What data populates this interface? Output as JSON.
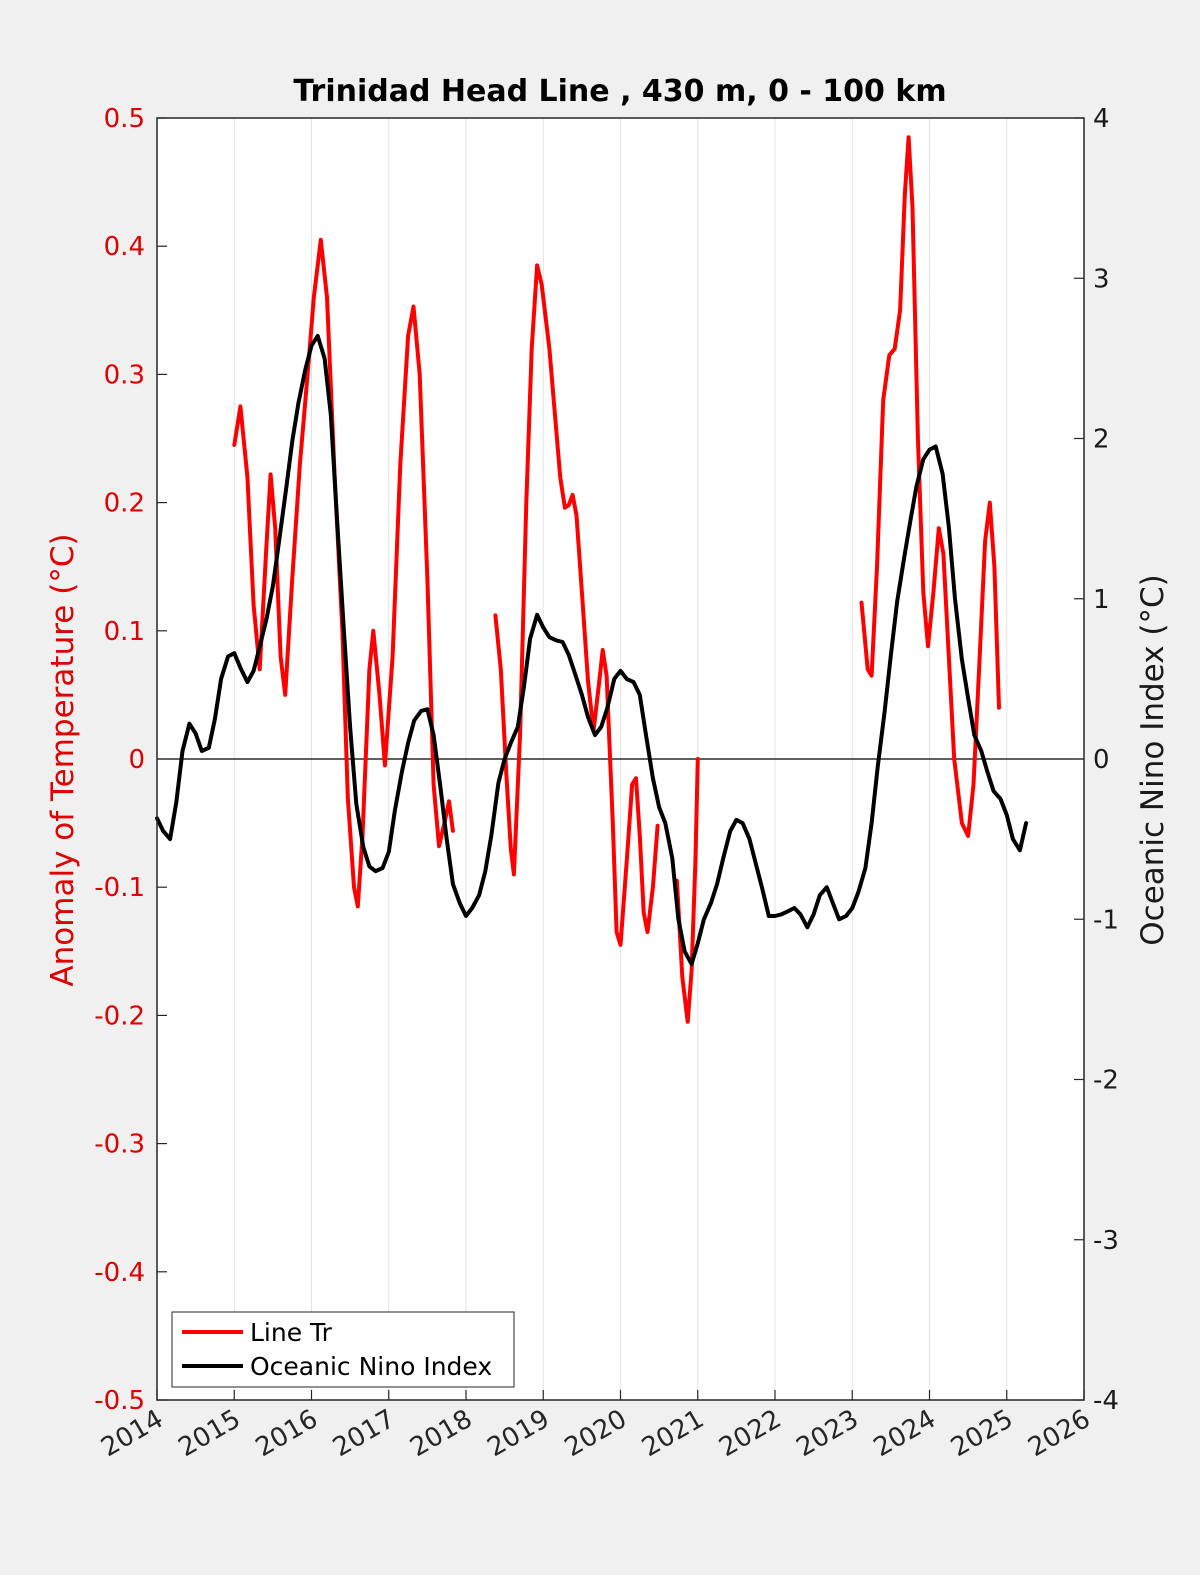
{
  "chart_data": {
    "type": "line",
    "title": "Trinidad Head Line , 430 m, 0 - 100 km",
    "xlabel": "",
    "ylabel_left": "Anomaly of Temperature (°C)",
    "ylabel_right": "Oceanic Nino Index (°C)",
    "xlim": [
      2014,
      2026
    ],
    "ylim_left": [
      -0.5,
      0.5
    ],
    "ylim_right": [
      -4,
      4
    ],
    "x_ticks": [
      "2014",
      "2015",
      "2016",
      "2017",
      "2018",
      "2019",
      "2020",
      "2021",
      "2022",
      "2023",
      "2024",
      "2025",
      "2026"
    ],
    "y_ticks_left": [
      "-0.5",
      "-0.4",
      "-0.3",
      "-0.2",
      "-0.1",
      "0",
      "0.1",
      "0.2",
      "0.3",
      "0.4",
      "0.5"
    ],
    "y_ticks_right": [
      "-4",
      "-3",
      "-2",
      "-1",
      "0",
      "1",
      "2",
      "3",
      "4"
    ],
    "grid": "vertical",
    "zero_line": true,
    "legend_position": "bottom-left",
    "colors": {
      "line_tr": "#ff0000",
      "oni": "#000000",
      "left_axis": "#e00000"
    },
    "series": [
      {
        "name": "Line Tr",
        "axis": "left",
        "segments": [
          [
            [
              2015.0,
              0.245
            ],
            [
              2015.08,
              0.275
            ],
            [
              2015.17,
              0.22
            ],
            [
              2015.25,
              0.12
            ],
            [
              2015.33,
              0.07
            ],
            [
              2015.42,
              0.17
            ],
            [
              2015.47,
              0.222
            ],
            [
              2015.53,
              0.18
            ],
            [
              2015.6,
              0.08
            ],
            [
              2015.66,
              0.05
            ],
            [
              2015.75,
              0.14
            ],
            [
              2015.85,
              0.23
            ],
            [
              2015.95,
              0.3
            ],
            [
              2016.03,
              0.36
            ],
            [
              2016.12,
              0.405
            ],
            [
              2016.2,
              0.36
            ],
            [
              2016.3,
              0.22
            ],
            [
              2016.4,
              0.1
            ],
            [
              2016.47,
              -0.03
            ],
            [
              2016.55,
              -0.1
            ],
            [
              2016.6,
              -0.115
            ],
            [
              2016.66,
              -0.06
            ],
            [
              2016.75,
              0.07
            ],
            [
              2016.8,
              0.1
            ],
            [
              2016.88,
              0.05
            ],
            [
              2016.95,
              -0.005
            ],
            [
              2017.05,
              0.08
            ],
            [
              2017.15,
              0.23
            ],
            [
              2017.25,
              0.33
            ],
            [
              2017.32,
              0.353
            ],
            [
              2017.4,
              0.3
            ],
            [
              2017.5,
              0.14
            ],
            [
              2017.58,
              -0.02
            ],
            [
              2017.65,
              -0.068
            ],
            [
              2017.72,
              -0.05
            ],
            [
              2017.78,
              -0.033
            ],
            [
              2017.83,
              -0.056
            ]
          ],
          [
            [
              2018.38,
              0.112
            ],
            [
              2018.45,
              0.07
            ],
            [
              2018.52,
              -0.01
            ],
            [
              2018.58,
              -0.07
            ],
            [
              2018.62,
              -0.09
            ],
            [
              2018.7,
              0.02
            ],
            [
              2018.78,
              0.2
            ],
            [
              2018.85,
              0.32
            ],
            [
              2018.92,
              0.385
            ],
            [
              2018.98,
              0.37
            ],
            [
              2019.08,
              0.32
            ],
            [
              2019.15,
              0.27
            ],
            [
              2019.22,
              0.22
            ],
            [
              2019.28,
              0.196
            ],
            [
              2019.33,
              0.198
            ],
            [
              2019.38,
              0.206
            ],
            [
              2019.43,
              0.19
            ],
            [
              2019.5,
              0.13
            ],
            [
              2019.58,
              0.06
            ],
            [
              2019.65,
              0.022
            ],
            [
              2019.72,
              0.058
            ],
            [
              2019.77,
              0.085
            ],
            [
              2019.82,
              0.065
            ],
            [
              2019.9,
              -0.05
            ],
            [
              2019.95,
              -0.135
            ],
            [
              2020.0,
              -0.145
            ],
            [
              2020.08,
              -0.08
            ],
            [
              2020.15,
              -0.02
            ],
            [
              2020.2,
              -0.015
            ],
            [
              2020.25,
              -0.06
            ],
            [
              2020.3,
              -0.12
            ],
            [
              2020.35,
              -0.135
            ],
            [
              2020.42,
              -0.1
            ],
            [
              2020.48,
              -0.052
            ]
          ],
          [
            [
              2020.73,
              -0.095
            ],
            [
              2020.8,
              -0.17
            ],
            [
              2020.87,
              -0.205
            ],
            [
              2020.92,
              -0.165
            ],
            [
              2020.97,
              -0.08
            ],
            [
              2021.0,
              0.0
            ]
          ],
          [
            [
              2023.12,
              0.122
            ],
            [
              2023.2,
              0.07
            ],
            [
              2023.25,
              0.065
            ],
            [
              2023.32,
              0.15
            ],
            [
              2023.4,
              0.28
            ],
            [
              2023.48,
              0.315
            ],
            [
              2023.55,
              0.32
            ],
            [
              2023.62,
              0.35
            ],
            [
              2023.68,
              0.44
            ],
            [
              2023.73,
              0.485
            ],
            [
              2023.78,
              0.43
            ],
            [
              2023.85,
              0.25
            ],
            [
              2023.92,
              0.13
            ],
            [
              2023.98,
              0.088
            ],
            [
              2024.05,
              0.13
            ],
            [
              2024.12,
              0.18
            ],
            [
              2024.18,
              0.16
            ],
            [
              2024.25,
              0.08
            ],
            [
              2024.32,
              0.0
            ],
            [
              2024.42,
              -0.05
            ],
            [
              2024.5,
              -0.06
            ],
            [
              2024.57,
              -0.02
            ],
            [
              2024.65,
              0.08
            ],
            [
              2024.72,
              0.17
            ],
            [
              2024.78,
              0.2
            ],
            [
              2024.84,
              0.15
            ],
            [
              2024.9,
              0.04
            ]
          ]
        ]
      },
      {
        "name": "Oceanic Nino Index",
        "axis": "right",
        "segments": [
          [
            [
              2014.0,
              -0.37
            ],
            [
              2014.08,
              -0.45
            ],
            [
              2014.17,
              -0.5
            ],
            [
              2014.25,
              -0.27
            ],
            [
              2014.33,
              0.05
            ],
            [
              2014.42,
              0.22
            ],
            [
              2014.5,
              0.16
            ],
            [
              2014.58,
              0.05
            ],
            [
              2014.67,
              0.07
            ],
            [
              2014.75,
              0.25
            ],
            [
              2014.83,
              0.5
            ],
            [
              2014.92,
              0.64
            ],
            [
              2015.0,
              0.66
            ],
            [
              2015.08,
              0.57
            ],
            [
              2015.17,
              0.48
            ],
            [
              2015.25,
              0.55
            ],
            [
              2015.33,
              0.7
            ],
            [
              2015.42,
              0.88
            ],
            [
              2015.5,
              1.08
            ],
            [
              2015.58,
              1.36
            ],
            [
              2015.67,
              1.68
            ],
            [
              2015.75,
              1.98
            ],
            [
              2015.83,
              2.22
            ],
            [
              2015.92,
              2.43
            ],
            [
              2016.0,
              2.58
            ],
            [
              2016.08,
              2.64
            ],
            [
              2016.17,
              2.5
            ],
            [
              2016.25,
              2.15
            ],
            [
              2016.33,
              1.5
            ],
            [
              2016.42,
              0.8
            ],
            [
              2016.5,
              0.2
            ],
            [
              2016.58,
              -0.28
            ],
            [
              2016.67,
              -0.55
            ],
            [
              2016.75,
              -0.67
            ],
            [
              2016.83,
              -0.7
            ],
            [
              2016.92,
              -0.68
            ],
            [
              2017.0,
              -0.58
            ],
            [
              2017.08,
              -0.32
            ],
            [
              2017.17,
              -0.08
            ],
            [
              2017.25,
              0.1
            ],
            [
              2017.33,
              0.24
            ],
            [
              2017.42,
              0.3
            ],
            [
              2017.5,
              0.31
            ],
            [
              2017.58,
              0.15
            ],
            [
              2017.67,
              -0.18
            ],
            [
              2017.75,
              -0.5
            ],
            [
              2017.83,
              -0.78
            ],
            [
              2017.92,
              -0.9
            ],
            [
              2018.0,
              -0.98
            ],
            [
              2018.08,
              -0.93
            ],
            [
              2018.17,
              -0.85
            ],
            [
              2018.25,
              -0.7
            ],
            [
              2018.33,
              -0.47
            ],
            [
              2018.42,
              -0.15
            ],
            [
              2018.5,
              0.0
            ],
            [
              2018.58,
              0.1
            ],
            [
              2018.67,
              0.2
            ],
            [
              2018.75,
              0.45
            ],
            [
              2018.83,
              0.75
            ],
            [
              2018.92,
              0.9
            ],
            [
              2019.0,
              0.82
            ],
            [
              2019.08,
              0.76
            ],
            [
              2019.17,
              0.74
            ],
            [
              2019.25,
              0.73
            ],
            [
              2019.33,
              0.65
            ],
            [
              2019.42,
              0.52
            ],
            [
              2019.5,
              0.4
            ],
            [
              2019.58,
              0.26
            ],
            [
              2019.67,
              0.15
            ],
            [
              2019.75,
              0.2
            ],
            [
              2019.83,
              0.32
            ],
            [
              2019.92,
              0.5
            ],
            [
              2020.0,
              0.55
            ],
            [
              2020.08,
              0.5
            ],
            [
              2020.17,
              0.48
            ],
            [
              2020.25,
              0.4
            ],
            [
              2020.33,
              0.15
            ],
            [
              2020.42,
              -0.12
            ],
            [
              2020.5,
              -0.3
            ],
            [
              2020.58,
              -0.4
            ],
            [
              2020.67,
              -0.62
            ],
            [
              2020.75,
              -1.0
            ],
            [
              2020.83,
              -1.2
            ],
            [
              2020.92,
              -1.28
            ],
            [
              2021.0,
              -1.15
            ],
            [
              2021.08,
              -1.0
            ],
            [
              2021.17,
              -0.9
            ],
            [
              2021.25,
              -0.78
            ],
            [
              2021.33,
              -0.62
            ],
            [
              2021.42,
              -0.45
            ],
            [
              2021.5,
              -0.38
            ],
            [
              2021.58,
              -0.4
            ],
            [
              2021.67,
              -0.5
            ],
            [
              2021.75,
              -0.65
            ],
            [
              2021.83,
              -0.8
            ],
            [
              2021.92,
              -0.98
            ],
            [
              2022.0,
              -0.98
            ],
            [
              2022.08,
              -0.97
            ],
            [
              2022.17,
              -0.95
            ],
            [
              2022.25,
              -0.93
            ],
            [
              2022.33,
              -0.97
            ],
            [
              2022.42,
              -1.05
            ],
            [
              2022.5,
              -0.97
            ],
            [
              2022.58,
              -0.85
            ],
            [
              2022.67,
              -0.8
            ],
            [
              2022.75,
              -0.9
            ],
            [
              2022.83,
              -1.0
            ],
            [
              2022.92,
              -0.98
            ],
            [
              2023.0,
              -0.93
            ],
            [
              2023.08,
              -0.83
            ],
            [
              2023.17,
              -0.68
            ],
            [
              2023.25,
              -0.4
            ],
            [
              2023.33,
              -0.05
            ],
            [
              2023.42,
              0.3
            ],
            [
              2023.5,
              0.65
            ],
            [
              2023.58,
              0.98
            ],
            [
              2023.67,
              1.25
            ],
            [
              2023.75,
              1.48
            ],
            [
              2023.83,
              1.7
            ],
            [
              2023.92,
              1.87
            ],
            [
              2024.0,
              1.93
            ],
            [
              2024.08,
              1.95
            ],
            [
              2024.17,
              1.78
            ],
            [
              2024.25,
              1.45
            ],
            [
              2024.33,
              1.0
            ],
            [
              2024.42,
              0.62
            ],
            [
              2024.5,
              0.38
            ],
            [
              2024.58,
              0.15
            ],
            [
              2024.67,
              0.05
            ],
            [
              2024.75,
              -0.08
            ],
            [
              2024.83,
              -0.2
            ],
            [
              2024.92,
              -0.25
            ],
            [
              2025.0,
              -0.35
            ],
            [
              2025.08,
              -0.5
            ],
            [
              2025.17,
              -0.57
            ],
            [
              2025.25,
              -0.4
            ]
          ]
        ]
      }
    ]
  }
}
